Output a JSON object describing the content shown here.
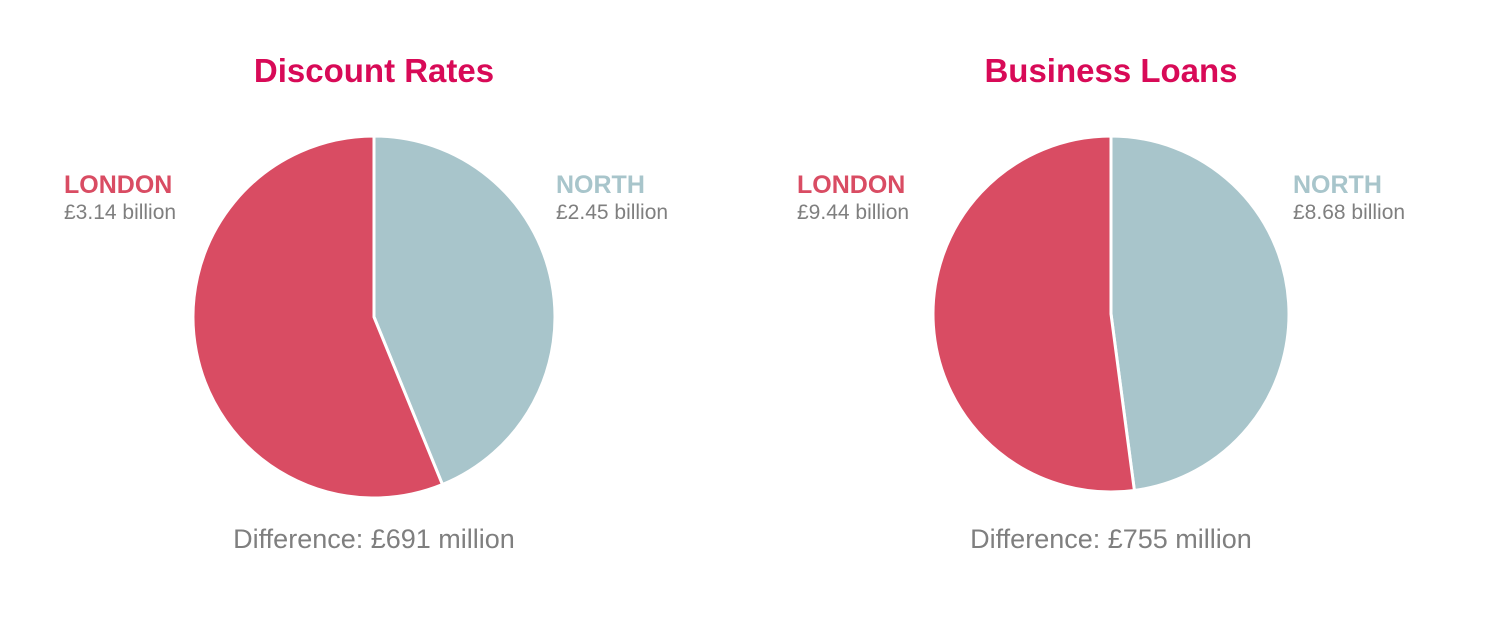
{
  "colors": {
    "title": "#d80a57",
    "london": "#d94c63",
    "north": "#a8c5cb",
    "text": "#7f7f7f"
  },
  "chart_data": [
    {
      "type": "pie",
      "title": "Discount Rates",
      "slices": [
        {
          "name": "NORTH",
          "value": 2.45,
          "label": "£2.45 billion"
        },
        {
          "name": "LONDON",
          "value": 3.14,
          "label": "£3.14 billion"
        }
      ],
      "note": "Difference: £691 million"
    },
    {
      "type": "pie",
      "title": "Business Loans",
      "slices": [
        {
          "name": "NORTH",
          "value": 8.68,
          "label": "£8.68 billion"
        },
        {
          "name": "LONDON",
          "value": 9.44,
          "label": "£9.44 billion"
        }
      ],
      "note": "Difference: £755 million"
    }
  ]
}
